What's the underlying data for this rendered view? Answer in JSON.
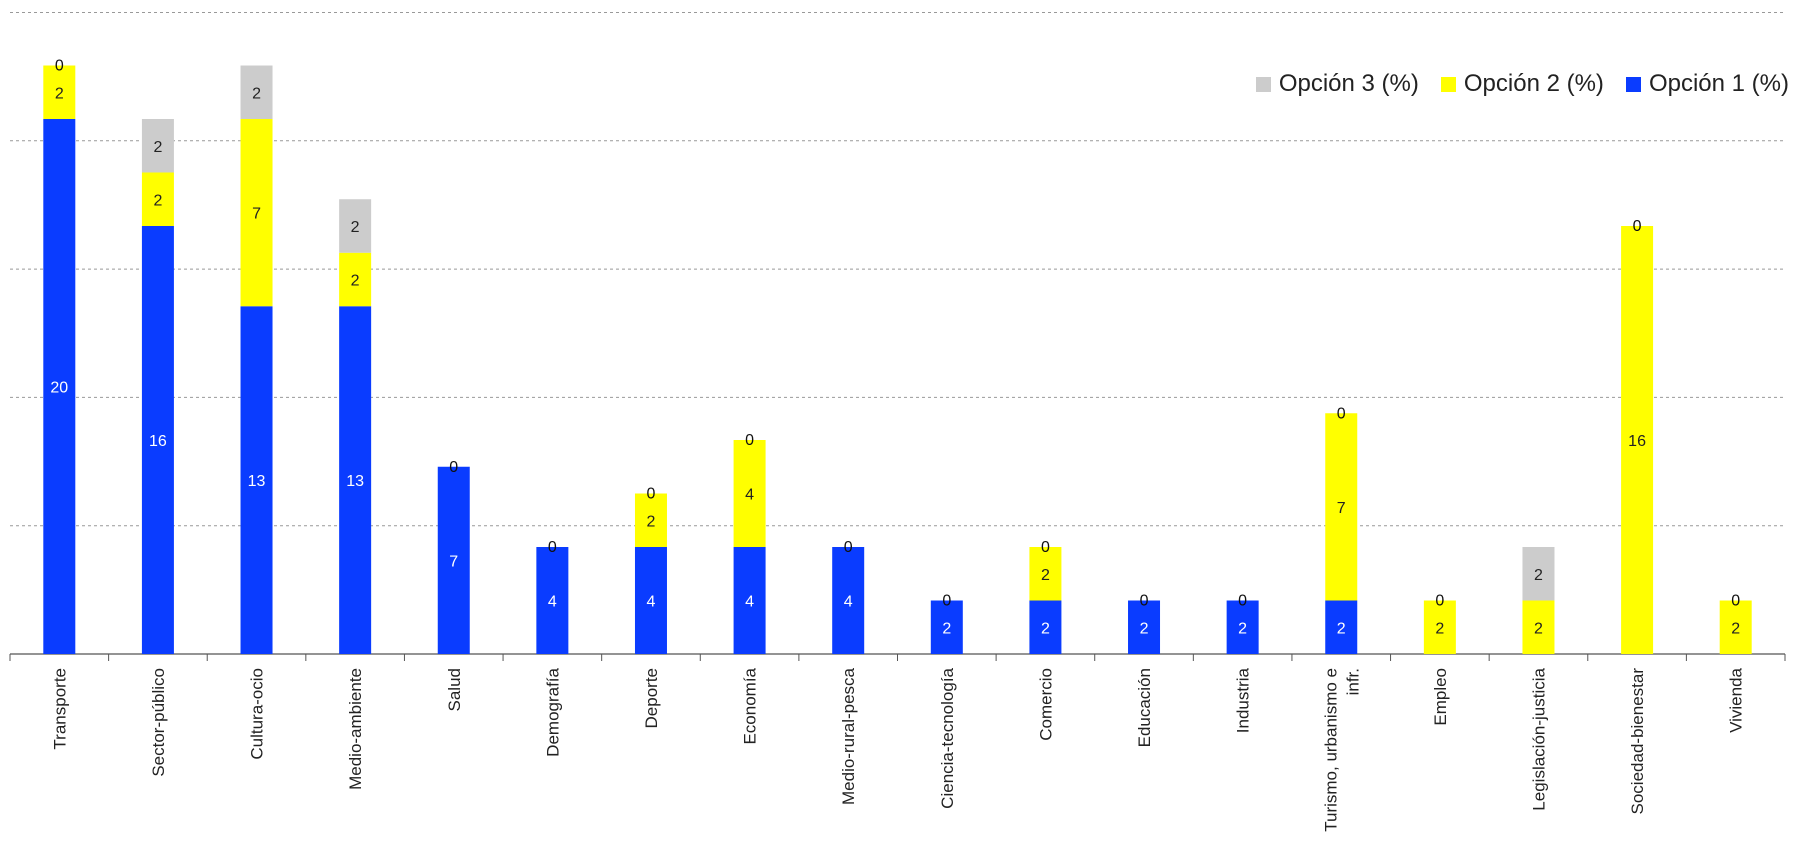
{
  "chart_data": {
    "type": "bar",
    "stacked": true,
    "categories": [
      "Transporte",
      "Sector-público",
      "Cultura-ocio",
      "Medio-ambiente",
      "Salud",
      "Demografía",
      "Deporte",
      "Economía",
      "Medio-rural-pesca",
      "Ciencia-tecnología",
      "Comercio",
      "Educación",
      "Industria",
      "Turismo, urbanismo e infr.",
      "Empleo",
      "Legislación-justicia",
      "Sociedad-bienestar",
      "Vivienda"
    ],
    "series": [
      {
        "name": "Opción 1 (%)",
        "color": "#0a3cff",
        "label_color": "#ffffff",
        "values": [
          20,
          16,
          13,
          13,
          7,
          4,
          4,
          4,
          4,
          2,
          2,
          2,
          2,
          2,
          0,
          0,
          0,
          0
        ]
      },
      {
        "name": "Opción 2 (%)",
        "color": "#ffff00",
        "label_color": "#222222",
        "values": [
          2,
          2,
          7,
          2,
          0,
          0,
          2,
          4,
          0,
          0,
          2,
          0,
          0,
          7,
          2,
          2,
          16,
          2
        ]
      },
      {
        "name": "Opción 3 (%)",
        "color": "#cccccc",
        "label_color": "#222222",
        "values": [
          0,
          2,
          2,
          2,
          0,
          0,
          0,
          0,
          0,
          0,
          0,
          0,
          0,
          0,
          0,
          2,
          0,
          0
        ]
      }
    ],
    "ylim": [
      0,
      24
    ],
    "grid": true,
    "legend_position": "top-right",
    "xlabel": "",
    "ylabel": ""
  }
}
